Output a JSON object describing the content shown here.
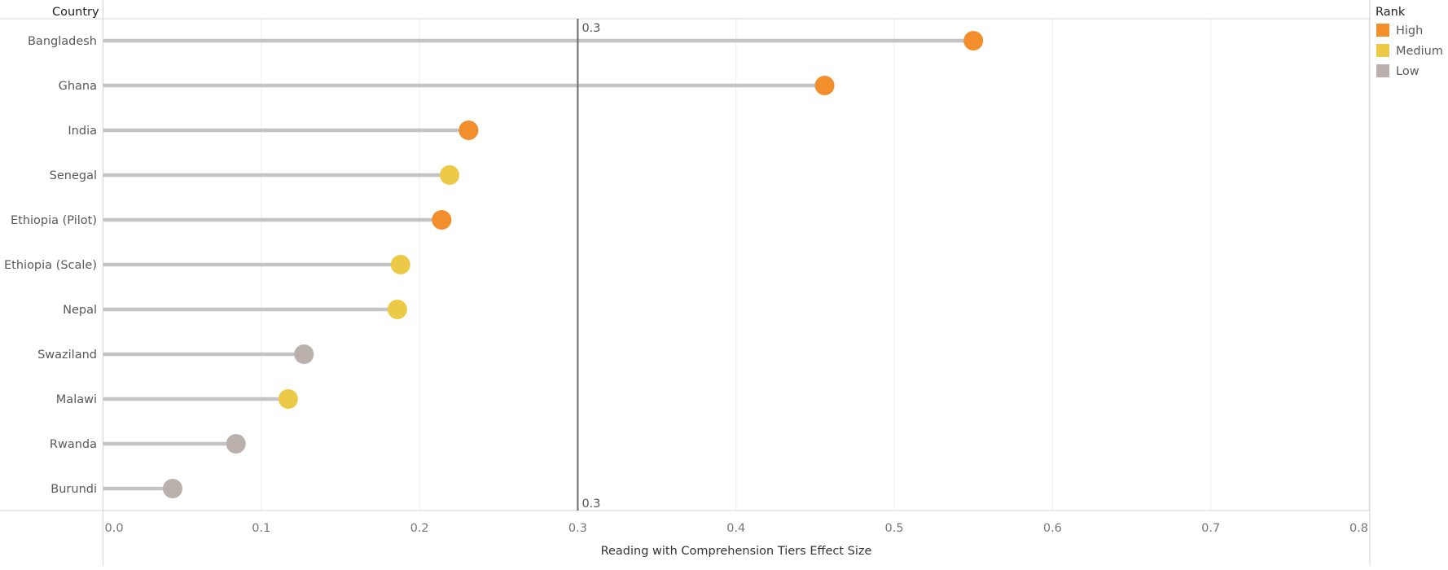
{
  "chart_data": {
    "type": "lollipop",
    "row_header": "Country",
    "xlabel": "Reading with Comprehension Tiers Effect Size",
    "xlim": [
      0.0,
      0.8
    ],
    "x_ticks": [
      0.0,
      0.1,
      0.2,
      0.3,
      0.4,
      0.5,
      0.6,
      0.7,
      0.8
    ],
    "x_tick_labels": [
      "0.0",
      "0.1",
      "0.2",
      "0.3",
      "0.4",
      "0.5",
      "0.6",
      "0.7",
      "0.8"
    ],
    "grid": true,
    "reference_line": {
      "value": 0.3,
      "label_top": "0.3",
      "label_bottom": "0.3"
    },
    "legend": {
      "title": "Rank",
      "position": "top-right",
      "items": [
        {
          "label": "High",
          "color": "#F28E2B"
        },
        {
          "label": "Medium",
          "color": "#EDC948"
        },
        {
          "label": "Low",
          "color": "#BAB0AC"
        }
      ]
    },
    "stem_color": "#C4C4C4",
    "categories": [
      "Bangladesh",
      "Ghana",
      "India",
      "Senegal",
      "Ethiopia (Pilot)",
      "Ethiopia (Scale)",
      "Nepal",
      "Swaziland",
      "Malawi",
      "Rwanda",
      "Burundi"
    ],
    "values": [
      0.55,
      0.456,
      0.231,
      0.219,
      0.214,
      0.188,
      0.186,
      0.127,
      0.117,
      0.084,
      0.044
    ],
    "ranks": [
      "High",
      "High",
      "High",
      "Medium",
      "High",
      "Medium",
      "Medium",
      "Low",
      "Medium",
      "Low",
      "Low"
    ]
  }
}
